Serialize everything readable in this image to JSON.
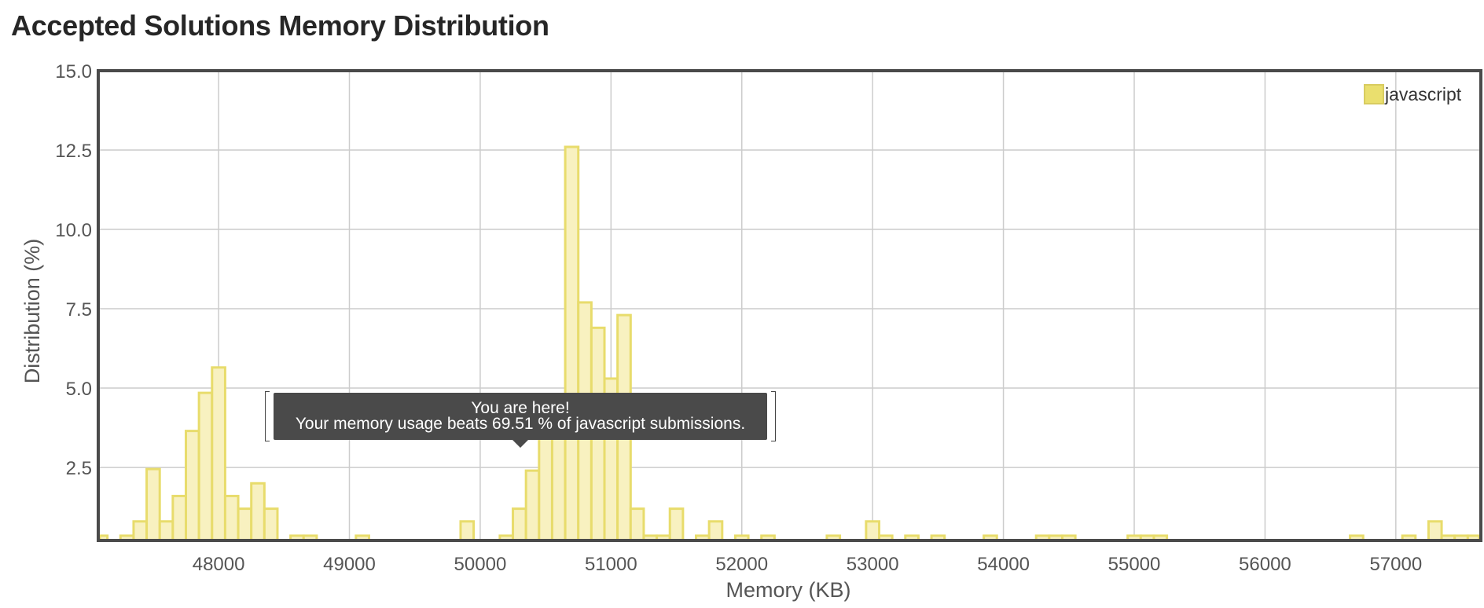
{
  "page": {
    "title": "Accepted Solutions Memory Distribution"
  },
  "tooltip": {
    "line1": "You are here!",
    "line2": "Your memory usage beats 69.51 % of javascript submissions."
  },
  "chart_data": {
    "type": "bar",
    "title": "Accepted Solutions Memory Distribution",
    "xlabel": "Memory (KB)",
    "ylabel": "Distribution (%)",
    "xlim": [
      47080,
      57650
    ],
    "ylim": [
      0.2,
      15.0
    ],
    "xticks": [
      48000,
      49000,
      50000,
      51000,
      52000,
      53000,
      54000,
      55000,
      56000,
      57000
    ],
    "yticks": [
      2.5,
      5.0,
      7.5,
      10.0,
      12.5,
      15.0
    ],
    "ytick_labels": [
      "2.5",
      "5.0",
      "7.5",
      "10.0",
      "12.5",
      "15.0"
    ],
    "grid": true,
    "legend": {
      "position": "top-right",
      "entries": [
        "javascript"
      ]
    },
    "colors": {
      "bar_fill": "#f8f1c0",
      "bar_stroke": "#e8dc6c",
      "axis": "#4a4a4a",
      "grid": "#cccccc"
    },
    "bin_width": 100,
    "series": [
      {
        "name": "javascript",
        "bins": [
          [
            47100,
            0.35
          ],
          [
            47300,
            0.35
          ],
          [
            47400,
            0.8
          ],
          [
            47500,
            2.45
          ],
          [
            47600,
            0.8
          ],
          [
            47700,
            1.6
          ],
          [
            47800,
            3.65
          ],
          [
            47900,
            4.85
          ],
          [
            48000,
            5.65
          ],
          [
            48100,
            1.6
          ],
          [
            48200,
            1.2
          ],
          [
            48300,
            2.0
          ],
          [
            48400,
            1.2
          ],
          [
            48600,
            0.35
          ],
          [
            48700,
            0.35
          ],
          [
            49100,
            0.35
          ],
          [
            49900,
            0.8
          ],
          [
            50200,
            0.35
          ],
          [
            50300,
            1.2
          ],
          [
            50400,
            2.4
          ],
          [
            50500,
            3.65
          ],
          [
            50600,
            4.05
          ],
          [
            50700,
            12.6
          ],
          [
            50800,
            7.7
          ],
          [
            50900,
            6.9
          ],
          [
            51000,
            5.3
          ],
          [
            51100,
            7.3
          ],
          [
            51200,
            1.2
          ],
          [
            51300,
            0.35
          ],
          [
            51400,
            0.35
          ],
          [
            51500,
            1.2
          ],
          [
            51700,
            0.35
          ],
          [
            51800,
            0.8
          ],
          [
            52000,
            0.35
          ],
          [
            52200,
            0.35
          ],
          [
            52700,
            0.35
          ],
          [
            53000,
            0.8
          ],
          [
            53100,
            0.35
          ],
          [
            53300,
            0.35
          ],
          [
            53500,
            0.35
          ],
          [
            53900,
            0.35
          ],
          [
            54300,
            0.35
          ],
          [
            54400,
            0.35
          ],
          [
            54500,
            0.35
          ],
          [
            55000,
            0.35
          ],
          [
            55100,
            0.35
          ],
          [
            55200,
            0.35
          ],
          [
            56700,
            0.35
          ],
          [
            57100,
            0.35
          ],
          [
            57300,
            0.8
          ],
          [
            57400,
            0.35
          ],
          [
            57500,
            0.35
          ],
          [
            57600,
            0.35
          ]
        ]
      }
    ]
  }
}
